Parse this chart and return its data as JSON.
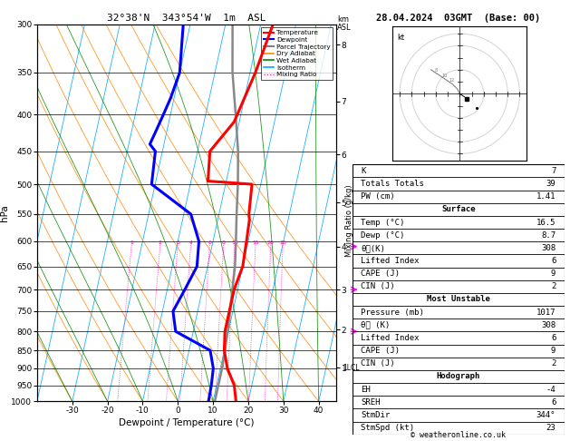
{
  "title_left": "32°38'N  343°54'W  1m  ASL",
  "title_right": "28.04.2024  03GMT  (Base: 00)",
  "xlabel": "Dewpoint / Temperature (°C)",
  "copyright": "© weatheronline.co.uk",
  "p_min": 300,
  "p_max": 1000,
  "skew_factor": 1.0,
  "pressure_levels": [
    300,
    350,
    400,
    450,
    500,
    550,
    600,
    650,
    700,
    750,
    800,
    850,
    900,
    950,
    1000
  ],
  "temp_profile_p": [
    300,
    350,
    400,
    410,
    450,
    495,
    500,
    550,
    560,
    600,
    650,
    700,
    750,
    800,
    850,
    900,
    950,
    1000
  ],
  "temp_profile_t": [
    3.5,
    1.5,
    -1.0,
    -1.5,
    -6.5,
    -5.2,
    7.5,
    8.5,
    9.0,
    9.5,
    10.0,
    9.0,
    9.0,
    9.0,
    10.0,
    12.0,
    15.0,
    16.5
  ],
  "dewp_profile_p": [
    300,
    350,
    380,
    400,
    420,
    440,
    450,
    500,
    550,
    600,
    650,
    700,
    750,
    800,
    850,
    900,
    950,
    1000
  ],
  "dewp_profile_t": [
    -22,
    -20,
    -21,
    -22,
    -23,
    -24,
    -22,
    -21,
    -8,
    -4,
    -3.0,
    -5.0,
    -7.0,
    -5.0,
    6.0,
    8.0,
    8.5,
    8.7
  ],
  "parcel_p": [
    1000,
    950,
    900,
    850,
    800,
    750,
    700,
    650,
    600,
    550,
    500,
    450,
    400,
    350,
    300
  ],
  "parcel_t": [
    10.5,
    10.5,
    10.5,
    10.2,
    9.8,
    9.2,
    8.5,
    7.8,
    6.5,
    5.0,
    3.5,
    1.5,
    -1.5,
    -5.0,
    -8.0
  ],
  "km_pressures": [
    898,
    795,
    700,
    610,
    530,
    455,
    384,
    320
  ],
  "km_values": [
    1,
    2,
    3,
    4,
    5,
    6,
    7,
    8
  ],
  "mixing_ratio_values": [
    1,
    2,
    3,
    4,
    6,
    8,
    10,
    15,
    20,
    25
  ],
  "colors": {
    "temp": "#ff0000",
    "dewp": "#0000ff",
    "parcel": "#888888",
    "dry_adiabat": "#ff8800",
    "wet_adiabat": "#008800",
    "isotherm": "#00aaff",
    "mixing_ratio": "#ff00aa"
  },
  "info": {
    "K": "7",
    "TT": "39",
    "PW": "1.41",
    "s_temp": "16.5",
    "s_dewp": "8.7",
    "s_theta_e": "308",
    "s_li": "6",
    "s_cape": "9",
    "s_cin": "2",
    "mu_pres": "1017",
    "mu_theta_e": "308",
    "mu_li": "6",
    "mu_cape": "9",
    "mu_cin": "2",
    "eh": "-4",
    "sreh": "6",
    "stmdir": "344°",
    "stmspd": "23"
  }
}
